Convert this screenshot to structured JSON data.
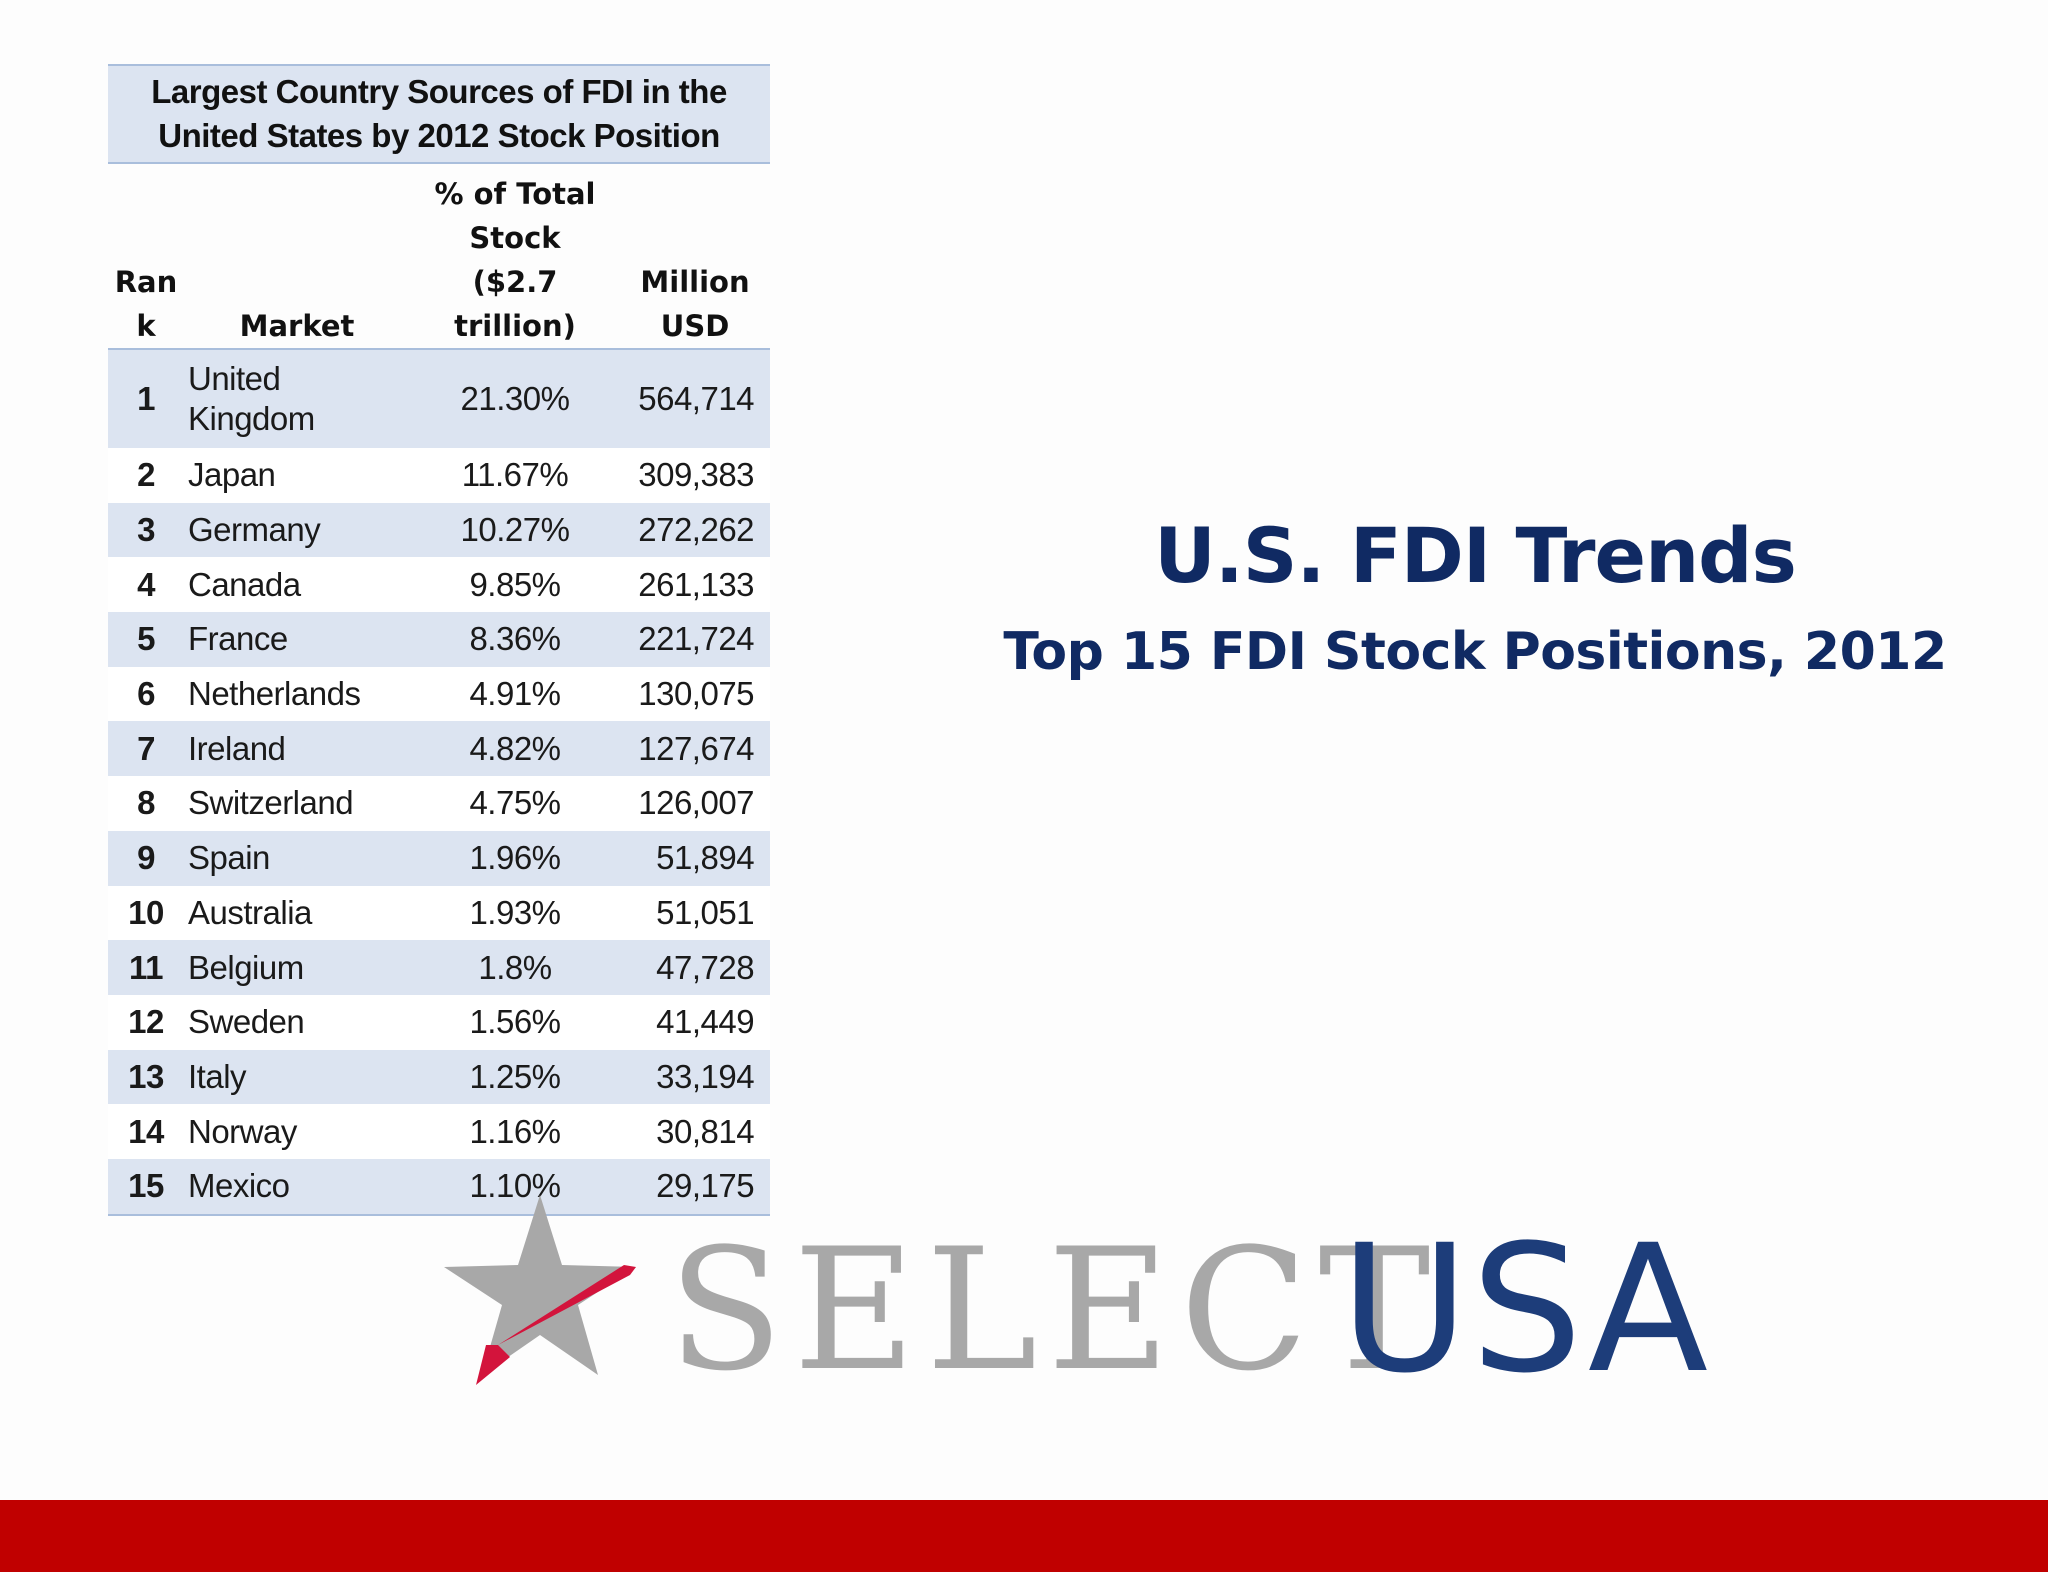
{
  "table": {
    "caption": "Largest Country Sources of FDI in the United States by 2012 Stock Position",
    "headers": {
      "rank": "Ran\nk",
      "market": "Market",
      "pct": "% of Total\nStock\n($2.7 trillion)",
      "usd": "Million\nUSD"
    },
    "rows": [
      {
        "rank": "1",
        "market": "United Kingdom",
        "pct": "21.30%",
        "usd": "564,714"
      },
      {
        "rank": "2",
        "market": "Japan",
        "pct": "11.67%",
        "usd": "309,383"
      },
      {
        "rank": "3",
        "market": "Germany",
        "pct": "10.27%",
        "usd": "272,262"
      },
      {
        "rank": "4",
        "market": "Canada",
        "pct": "9.85%",
        "usd": "261,133"
      },
      {
        "rank": "5",
        "market": "France",
        "pct": "8.36%",
        "usd": "221,724"
      },
      {
        "rank": "6",
        "market": "Netherlands",
        "pct": "4.91%",
        "usd": "130,075"
      },
      {
        "rank": "7",
        "market": "Ireland",
        "pct": "4.82%",
        "usd": "127,674"
      },
      {
        "rank": "8",
        "market": "Switzerland",
        "pct": "4.75%",
        "usd": "126,007"
      },
      {
        "rank": "9",
        "market": "Spain",
        "pct": "1.96%",
        "usd": "51,894"
      },
      {
        "rank": "10",
        "market": "Australia",
        "pct": "1.93%",
        "usd": "51,051"
      },
      {
        "rank": "11",
        "market": "Belgium",
        "pct": "1.8%",
        "usd": "47,728"
      },
      {
        "rank": "12",
        "market": "Sweden",
        "pct": "1.56%",
        "usd": "41,449"
      },
      {
        "rank": "13",
        "market": "Italy",
        "pct": "1.25%",
        "usd": "33,194"
      },
      {
        "rank": "14",
        "market": "Norway",
        "pct": "1.16%",
        "usd": "30,814"
      },
      {
        "rank": "15",
        "market": "Mexico",
        "pct": "1.10%",
        "usd": "29,175"
      }
    ]
  },
  "slide": {
    "title": "U.S. FDI Trends",
    "subtitle": "Top 15 FDI Stock Positions, 2012"
  },
  "logo": {
    "icon": "star-with-red-arrow-icon",
    "text_select": "SELECT",
    "text_usa": "USA",
    "colors": {
      "star": "#a8a8a8",
      "arrow": "#d3143c",
      "select": "#a8a8a8",
      "usa": "#1d3d7a"
    }
  },
  "colors": {
    "title": "#102a63",
    "table_band": "#dce4f1",
    "table_rule": "#a9bedc",
    "footer_bar": "#c00000"
  }
}
